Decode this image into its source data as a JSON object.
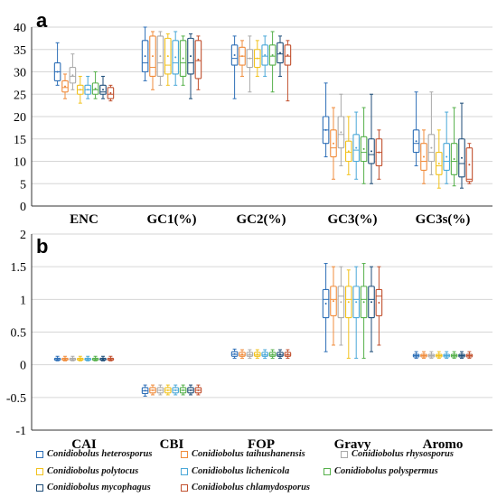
{
  "chart_data": [
    {
      "type": "box",
      "panel_label": "a",
      "categories": [
        "ENC",
        "GC1(%)",
        "GC2(%)",
        "GC3(%)",
        "GC3s(%)"
      ],
      "ylim": [
        0,
        40
      ],
      "yticks": [
        0,
        5,
        10,
        15,
        20,
        25,
        30,
        35,
        40
      ],
      "grid": true,
      "series": [
        {
          "name": "Conidiobolus heterosporus",
          "color": "#2e6fb7",
          "boxes": [
            {
              "min": 27,
              "q1": 28,
              "median": 30,
              "q3": 32,
              "max": 36.5
            },
            {
              "min": 28,
              "q1": 30,
              "median": 32,
              "q3": 37,
              "max": 40
            },
            {
              "min": 24,
              "q1": 31.5,
              "median": 33,
              "q3": 36,
              "max": 38
            },
            {
              "min": 11,
              "q1": 14,
              "median": 17,
              "q3": 20,
              "max": 27.5
            },
            {
              "min": 9,
              "q1": 12,
              "median": 14,
              "q3": 17,
              "max": 25.5
            }
          ]
        },
        {
          "name": "Conidiobolus taihushanensis",
          "color": "#f08c3c",
          "boxes": [
            {
              "min": 24,
              "q1": 25.5,
              "median": 26.5,
              "q3": 28,
              "max": 29.5
            },
            {
              "min": 26,
              "q1": 29,
              "median": 31,
              "q3": 38,
              "max": 39
            },
            {
              "min": 29,
              "q1": 31.5,
              "median": 33.5,
              "q3": 35.5,
              "max": 37
            },
            {
              "min": 6,
              "q1": 11,
              "median": 13,
              "q3": 17,
              "max": 22
            },
            {
              "min": 5,
              "q1": 8,
              "median": 10,
              "q3": 14,
              "max": 17
            }
          ]
        },
        {
          "name": "Conidiobolus rhysosporus",
          "color": "#aaaaaa",
          "boxes": [
            {
              "min": 26,
              "q1": 27.5,
              "median": 29,
              "q3": 31,
              "max": 34
            },
            {
              "min": 27,
              "q1": 29,
              "median": 32,
              "q3": 38,
              "max": 39
            },
            {
              "min": 25.5,
              "q1": 31,
              "median": 33,
              "q3": 35,
              "max": 38
            },
            {
              "min": 9,
              "q1": 13,
              "median": 16,
              "q3": 20,
              "max": 25
            },
            {
              "min": 7,
              "q1": 10,
              "median": 12,
              "q3": 16,
              "max": 25.5
            }
          ]
        },
        {
          "name": "Conidiobolus polytocus",
          "color": "#f2c21d",
          "boxes": [
            {
              "min": 23,
              "q1": 25,
              "median": 26,
              "q3": 27,
              "max": 29
            },
            {
              "min": 27,
              "q1": 29.5,
              "median": 31.5,
              "q3": 37.5,
              "max": 38.5
            },
            {
              "min": 29,
              "q1": 31,
              "median": 33,
              "q3": 35,
              "max": 37
            },
            {
              "min": 7,
              "q1": 10,
              "median": 12,
              "q3": 14.5,
              "max": 20
            },
            {
              "min": 4,
              "q1": 7,
              "median": 9,
              "q3": 12,
              "max": 17
            }
          ]
        },
        {
          "name": "Conidiobolus lichenicola",
          "color": "#4aa8d8",
          "boxes": [
            {
              "min": 24,
              "q1": 25,
              "median": 26,
              "q3": 27,
              "max": 29
            },
            {
              "min": 27,
              "q1": 29.5,
              "median": 32,
              "q3": 37,
              "max": 39
            },
            {
              "min": 29,
              "q1": 31.5,
              "median": 33.5,
              "q3": 36,
              "max": 38
            },
            {
              "min": 6,
              "q1": 10,
              "median": 12.5,
              "q3": 16,
              "max": 21
            },
            {
              "min": 5,
              "q1": 8,
              "median": 10,
              "q3": 14,
              "max": 21
            }
          ]
        },
        {
          "name": "Conidiobolus polyspermus",
          "color": "#55b04a",
          "boxes": [
            {
              "min": 24,
              "q1": 25,
              "median": 26,
              "q3": 27.5,
              "max": 30
            },
            {
              "min": 27,
              "q1": 29,
              "median": 32,
              "q3": 37,
              "max": 38
            },
            {
              "min": 25.5,
              "q1": 31.5,
              "median": 33.5,
              "q3": 36,
              "max": 39
            },
            {
              "min": 5,
              "q1": 10,
              "median": 12,
              "q3": 15.5,
              "max": 22
            },
            {
              "min": 4.5,
              "q1": 7,
              "median": 10,
              "q3": 14,
              "max": 22
            }
          ]
        },
        {
          "name": "Conidiobolus mycophagus",
          "color": "#1f4e79",
          "boxes": [
            {
              "min": 24,
              "q1": 25,
              "median": 25.5,
              "q3": 27,
              "max": 29
            },
            {
              "min": 24,
              "q1": 29.5,
              "median": 32,
              "q3": 37.5,
              "max": 38.5
            },
            {
              "min": 29,
              "q1": 32,
              "median": 34,
              "q3": 36.5,
              "max": 38
            },
            {
              "min": 5,
              "q1": 9.5,
              "median": 11.5,
              "q3": 15,
              "max": 25
            },
            {
              "min": 4,
              "q1": 6.5,
              "median": 9.5,
              "q3": 15,
              "max": 23
            }
          ]
        },
        {
          "name": "Conidiobolus chlamydosporus",
          "color": "#c1502e",
          "boxes": [
            {
              "min": 23.5,
              "q1": 24,
              "median": 25,
              "q3": 26.5,
              "max": 27
            },
            {
              "min": 26,
              "q1": 28.5,
              "median": 32.5,
              "q3": 37,
              "max": 38
            },
            {
              "min": 23.5,
              "q1": 31.5,
              "median": 33.5,
              "q3": 36,
              "max": 37
            },
            {
              "min": 6,
              "q1": 9,
              "median": 12,
              "q3": 15,
              "max": 17
            },
            {
              "min": 5,
              "q1": 5.5,
              "median": 6,
              "q3": 13,
              "max": 14
            }
          ]
        }
      ]
    },
    {
      "type": "box",
      "panel_label": "b",
      "categories": [
        "CAI",
        "CBI",
        "FOP",
        "Gravy",
        "Aromo"
      ],
      "ylim": [
        -1,
        2
      ],
      "yticks": [
        -1,
        -0.5,
        0,
        0.5,
        1,
        1.5,
        2
      ],
      "grid": true,
      "series": [
        {
          "name": "Conidiobolus heterosporus",
          "color": "#2e6fb7",
          "boxes": [
            {
              "min": 0.06,
              "q1": 0.07,
              "median": 0.08,
              "q3": 0.1,
              "max": 0.13
            },
            {
              "min": -0.48,
              "q1": -0.44,
              "median": -0.4,
              "q3": -0.35,
              "max": -0.31
            },
            {
              "min": 0.1,
              "q1": 0.13,
              "median": 0.16,
              "q3": 0.2,
              "max": 0.24
            },
            {
              "min": 0.2,
              "q1": 0.72,
              "median": 1.0,
              "q3": 1.15,
              "max": 1.55
            },
            {
              "min": 0.1,
              "q1": 0.12,
              "median": 0.14,
              "q3": 0.16,
              "max": 0.2
            }
          ]
        },
        {
          "name": "Conidiobolus taihushanensis",
          "color": "#f08c3c",
          "boxes": [
            {
              "min": 0.06,
              "q1": 0.07,
              "median": 0.08,
              "q3": 0.1,
              "max": 0.13
            },
            {
              "min": -0.46,
              "q1": -0.43,
              "median": -0.39,
              "q3": -0.35,
              "max": -0.31
            },
            {
              "min": 0.1,
              "q1": 0.13,
              "median": 0.15,
              "q3": 0.19,
              "max": 0.23
            },
            {
              "min": 0.3,
              "q1": 0.75,
              "median": 1.0,
              "q3": 1.2,
              "max": 1.5
            },
            {
              "min": 0.1,
              "q1": 0.12,
              "median": 0.14,
              "q3": 0.16,
              "max": 0.2
            }
          ]
        },
        {
          "name": "Conidiobolus rhysosporus",
          "color": "#aaaaaa",
          "boxes": [
            {
              "min": 0.06,
              "q1": 0.07,
              "median": 0.08,
              "q3": 0.1,
              "max": 0.13
            },
            {
              "min": -0.46,
              "q1": -0.43,
              "median": -0.39,
              "q3": -0.35,
              "max": -0.31
            },
            {
              "min": 0.1,
              "q1": 0.13,
              "median": 0.15,
              "q3": 0.19,
              "max": 0.23
            },
            {
              "min": 0.3,
              "q1": 0.72,
              "median": 1.05,
              "q3": 1.2,
              "max": 1.5
            },
            {
              "min": 0.1,
              "q1": 0.12,
              "median": 0.14,
              "q3": 0.16,
              "max": 0.2
            }
          ]
        },
        {
          "name": "Conidiobolus polytocus",
          "color": "#f2c21d",
          "boxes": [
            {
              "min": 0.06,
              "q1": 0.07,
              "median": 0.08,
              "q3": 0.1,
              "max": 0.13
            },
            {
              "min": -0.46,
              "q1": -0.43,
              "median": -0.39,
              "q3": -0.35,
              "max": -0.31
            },
            {
              "min": 0.1,
              "q1": 0.13,
              "median": 0.15,
              "q3": 0.19,
              "max": 0.23
            },
            {
              "min": 0.1,
              "q1": 0.72,
              "median": 1.0,
              "q3": 1.2,
              "max": 1.45
            },
            {
              "min": 0.1,
              "q1": 0.12,
              "median": 0.14,
              "q3": 0.16,
              "max": 0.2
            }
          ]
        },
        {
          "name": "Conidiobolus lichenicola",
          "color": "#4aa8d8",
          "boxes": [
            {
              "min": 0.06,
              "q1": 0.07,
              "median": 0.08,
              "q3": 0.1,
              "max": 0.13
            },
            {
              "min": -0.46,
              "q1": -0.43,
              "median": -0.39,
              "q3": -0.35,
              "max": -0.31
            },
            {
              "min": 0.1,
              "q1": 0.13,
              "median": 0.15,
              "q3": 0.19,
              "max": 0.23
            },
            {
              "min": 0.1,
              "q1": 0.72,
              "median": 1.0,
              "q3": 1.2,
              "max": 1.5
            },
            {
              "min": 0.1,
              "q1": 0.12,
              "median": 0.14,
              "q3": 0.16,
              "max": 0.2
            }
          ]
        },
        {
          "name": "Conidiobolus polyspermus",
          "color": "#55b04a",
          "boxes": [
            {
              "min": 0.06,
              "q1": 0.07,
              "median": 0.08,
              "q3": 0.1,
              "max": 0.13
            },
            {
              "min": -0.46,
              "q1": -0.43,
              "median": -0.39,
              "q3": -0.35,
              "max": -0.31
            },
            {
              "min": 0.1,
              "q1": 0.13,
              "median": 0.15,
              "q3": 0.19,
              "max": 0.23
            },
            {
              "min": 0.1,
              "q1": 0.72,
              "median": 1.0,
              "q3": 1.2,
              "max": 1.55
            },
            {
              "min": 0.1,
              "q1": 0.12,
              "median": 0.14,
              "q3": 0.16,
              "max": 0.2
            }
          ]
        },
        {
          "name": "Conidiobolus mycophagus",
          "color": "#1f4e79",
          "boxes": [
            {
              "min": 0.06,
              "q1": 0.07,
              "median": 0.08,
              "q3": 0.1,
              "max": 0.13
            },
            {
              "min": -0.46,
              "q1": -0.43,
              "median": -0.39,
              "q3": -0.35,
              "max": -0.31
            },
            {
              "min": 0.1,
              "q1": 0.13,
              "median": 0.15,
              "q3": 0.19,
              "max": 0.23
            },
            {
              "min": 0.2,
              "q1": 0.72,
              "median": 1.0,
              "q3": 1.2,
              "max": 1.5
            },
            {
              "min": 0.1,
              "q1": 0.12,
              "median": 0.14,
              "q3": 0.16,
              "max": 0.2
            }
          ]
        },
        {
          "name": "Conidiobolus chlamydosporus",
          "color": "#c1502e",
          "boxes": [
            {
              "min": 0.06,
              "q1": 0.07,
              "median": 0.08,
              "q3": 0.1,
              "max": 0.13
            },
            {
              "min": -0.46,
              "q1": -0.43,
              "median": -0.39,
              "q3": -0.35,
              "max": -0.31
            },
            {
              "min": 0.1,
              "q1": 0.13,
              "median": 0.15,
              "q3": 0.19,
              "max": 0.23
            },
            {
              "min": 0.3,
              "q1": 0.75,
              "median": 1.05,
              "q3": 1.15,
              "max": 1.5
            },
            {
              "min": 0.1,
              "q1": 0.12,
              "median": 0.14,
              "q3": 0.16,
              "max": 0.2
            }
          ]
        }
      ]
    }
  ],
  "legend": {
    "placement": "bottom",
    "items": [
      {
        "name": "Conidiobolus heterosporus",
        "color": "#2e6fb7"
      },
      {
        "name": "Conidiobolus taihushanensis",
        "color": "#f08c3c"
      },
      {
        "name": "Conidiobolus rhysosporus",
        "color": "#aaaaaa"
      },
      {
        "name": "Conidiobolus polytocus",
        "color": "#f2c21d"
      },
      {
        "name": "Conidiobolus lichenicola",
        "color": "#4aa8d8"
      },
      {
        "name": "Conidiobolus polyspermus",
        "color": "#55b04a"
      },
      {
        "name": "Conidiobolus mycophagus",
        "color": "#1f4e79"
      },
      {
        "name": "Conidiobolus chlamydosporus",
        "color": "#c1502e"
      }
    ]
  }
}
